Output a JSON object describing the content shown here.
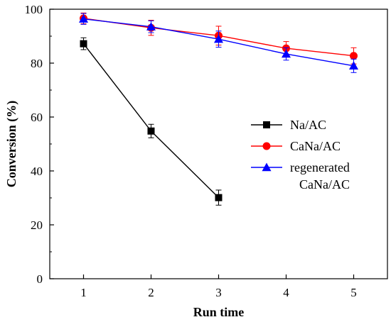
{
  "chart_data": {
    "type": "line",
    "xlabel": "Run time",
    "ylabel": "Conversion (%)",
    "xlim": [
      0.5,
      5.5
    ],
    "ylim": [
      0,
      100
    ],
    "xticks": [
      1,
      2,
      3,
      4,
      5
    ],
    "yticks": [
      0,
      20,
      40,
      60,
      80,
      100
    ],
    "legend_placement": "center-right",
    "series": [
      {
        "name": "Na/AC",
        "legend_lines": [
          "Na/AC"
        ],
        "color": "#000000",
        "marker": "square",
        "x": [
          1,
          2,
          3
        ],
        "y": [
          87.2,
          54.8,
          30.1
        ],
        "error": [
          2.2,
          2.5,
          2.8
        ]
      },
      {
        "name": "CaNa/AC",
        "legend_lines": [
          "CaNa/AC"
        ],
        "color": "#ff0000",
        "marker": "circle",
        "x": [
          1,
          2,
          3,
          4,
          5
        ],
        "y": [
          96.6,
          93.1,
          90.2,
          85.5,
          82.7
        ],
        "error": [
          2.0,
          2.8,
          3.5,
          2.5,
          3.0
        ]
      },
      {
        "name": "regenerated CaNa/AC",
        "legend_lines": [
          "regenerated",
          "CaNa/AC"
        ],
        "color": "#0000ff",
        "marker": "triangle",
        "x": [
          1,
          2,
          3,
          4,
          5
        ],
        "y": [
          96.4,
          93.5,
          88.9,
          83.4,
          79.0
        ],
        "error": [
          2.0,
          2.2,
          3.0,
          2.3,
          2.5
        ]
      }
    ]
  }
}
